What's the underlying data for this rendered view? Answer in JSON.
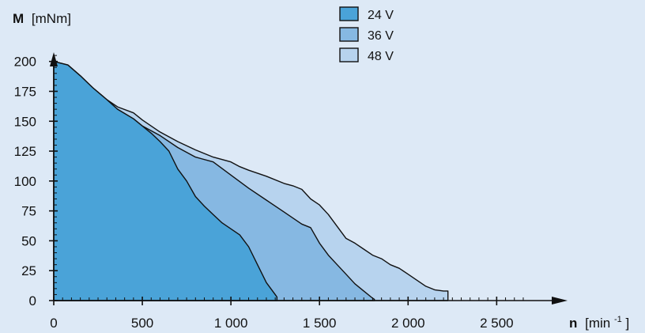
{
  "colors": {
    "background": "#dde9f6",
    "axis": "#111111",
    "24 V": "#4aa3d8",
    "36 V": "#86b8e2",
    "48 V": "#b7d3ee"
  },
  "chart_data": {
    "type": "area",
    "xlabel": {
      "symbol": "n",
      "unit": "[min",
      "exp": "-1",
      "close": "]"
    },
    "ylabel": {
      "symbol": "M",
      "unit": "[mNm]"
    },
    "xlim": [
      0,
      2900
    ],
    "ylim": [
      0,
      215
    ],
    "x_ticks": [
      0,
      500,
      1000,
      1500,
      2000,
      2500
    ],
    "x_tick_labels": [
      "0",
      "500",
      "1 000",
      "1 500",
      "2 000",
      "2 500"
    ],
    "y_ticks": [
      0,
      25,
      50,
      75,
      100,
      125,
      150,
      175,
      200
    ],
    "y_tick_labels": [
      "0",
      "25",
      "50",
      "75",
      "100",
      "125",
      "150",
      "175",
      "200"
    ],
    "x_minor_step": 50,
    "y_minor_step": 5,
    "legend": {
      "placement": "top-center",
      "entries": [
        "24 V",
        "36 V",
        "48 V"
      ]
    },
    "series": [
      {
        "name": "48 V",
        "x": [
          0,
          80,
          150,
          220,
          300,
          360,
          450,
          500,
          600,
          700,
          800,
          900,
          1000,
          1050,
          1100,
          1200,
          1300,
          1350,
          1400,
          1450,
          1500,
          1550,
          1600,
          1650,
          1700,
          1750,
          1800,
          1850,
          1900,
          1950,
          2000,
          2050,
          2100,
          2150,
          2200,
          2225,
          2225
        ],
        "y": [
          200,
          197,
          188,
          178,
          168,
          162,
          157,
          151,
          141,
          133,
          126,
          120,
          116,
          112,
          109,
          104,
          98,
          96,
          93,
          85,
          80,
          72,
          62,
          52,
          48,
          43,
          38,
          35,
          30,
          27,
          22,
          17,
          12,
          9,
          8,
          8,
          0
        ]
      },
      {
        "name": "36 V",
        "x": [
          0,
          80,
          150,
          220,
          300,
          360,
          450,
          500,
          600,
          700,
          800,
          900,
          1000,
          1100,
          1200,
          1300,
          1400,
          1450,
          1500,
          1550,
          1600,
          1650,
          1700,
          1750,
          1800,
          1810,
          1810
        ],
        "y": [
          200,
          197,
          188,
          178,
          168,
          160,
          152,
          146,
          138,
          128,
          120,
          116,
          105,
          94,
          84,
          74,
          64,
          61,
          48,
          38,
          30,
          22,
          14,
          8,
          2,
          1,
          0
        ]
      },
      {
        "name": "24 V",
        "x": [
          0,
          80,
          150,
          220,
          300,
          360,
          450,
          500,
          550,
          600,
          650,
          700,
          750,
          800,
          850,
          900,
          950,
          1000,
          1050,
          1100,
          1150,
          1200,
          1250,
          1260,
          1260
        ],
        "y": [
          200,
          197,
          188,
          178,
          168,
          160,
          152,
          146,
          140,
          133,
          125,
          110,
          100,
          87,
          79,
          72,
          65,
          60,
          55,
          45,
          30,
          15,
          5,
          3,
          0
        ]
      }
    ]
  }
}
